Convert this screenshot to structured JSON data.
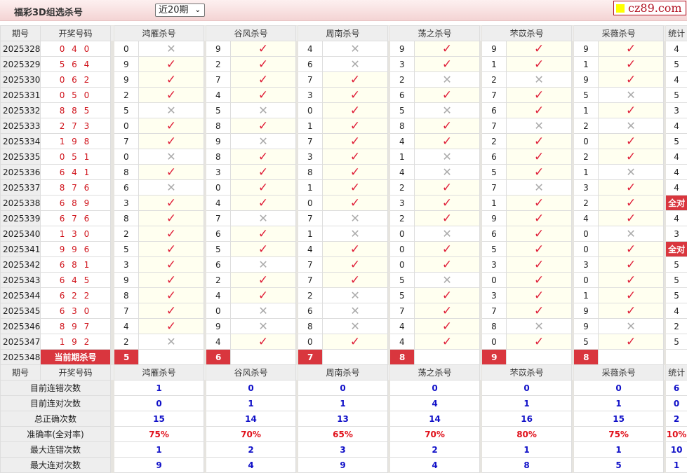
{
  "header": {
    "title": "福彩3D组选杀号",
    "range_select": "近20期",
    "logo": "cz89.com"
  },
  "columns": {
    "period": "期号",
    "draw": "开奖号码",
    "experts": [
      "鸿雁杀号",
      "谷风杀号",
      "周南杀号",
      "荡之杀号",
      "芣苡杀号",
      "采薇杀号"
    ],
    "stat": "统计"
  },
  "icons": {
    "ok": "check-icon",
    "bad": "cross-icon"
  },
  "colors": {
    "accent": "#d9363e",
    "ok": "#e0203a",
    "stat_value": "#1010c8"
  },
  "rows": [
    {
      "period": "2025328",
      "draw": "0 4 0",
      "kills": [
        [
          "0",
          0
        ],
        [
          "9",
          1
        ],
        [
          "4",
          0
        ],
        [
          "9",
          1
        ],
        [
          "9",
          1
        ],
        [
          "9",
          1
        ]
      ],
      "stat": "4"
    },
    {
      "period": "2025329",
      "draw": "5 6 4",
      "kills": [
        [
          "9",
          1
        ],
        [
          "2",
          1
        ],
        [
          "6",
          0
        ],
        [
          "3",
          1
        ],
        [
          "1",
          1
        ],
        [
          "1",
          1
        ]
      ],
      "stat": "5"
    },
    {
      "period": "2025330",
      "draw": "0 6 2",
      "kills": [
        [
          "9",
          1
        ],
        [
          "7",
          1
        ],
        [
          "7",
          1
        ],
        [
          "2",
          0
        ],
        [
          "2",
          0
        ],
        [
          "9",
          1
        ]
      ],
      "stat": "4"
    },
    {
      "period": "2025331",
      "draw": "0 5 0",
      "kills": [
        [
          "2",
          1
        ],
        [
          "4",
          1
        ],
        [
          "3",
          1
        ],
        [
          "6",
          1
        ],
        [
          "7",
          1
        ],
        [
          "5",
          0
        ]
      ],
      "stat": "5"
    },
    {
      "period": "2025332",
      "draw": "8 8 5",
      "kills": [
        [
          "5",
          0
        ],
        [
          "5",
          0
        ],
        [
          "0",
          1
        ],
        [
          "5",
          0
        ],
        [
          "6",
          1
        ],
        [
          "1",
          1
        ]
      ],
      "stat": "3"
    },
    {
      "period": "2025333",
      "draw": "2 7 3",
      "kills": [
        [
          "0",
          1
        ],
        [
          "8",
          1
        ],
        [
          "1",
          1
        ],
        [
          "8",
          1
        ],
        [
          "7",
          0
        ],
        [
          "2",
          0
        ]
      ],
      "stat": "4"
    },
    {
      "period": "2025334",
      "draw": "1 9 8",
      "kills": [
        [
          "7",
          1
        ],
        [
          "9",
          0
        ],
        [
          "7",
          1
        ],
        [
          "4",
          1
        ],
        [
          "2",
          1
        ],
        [
          "0",
          1
        ]
      ],
      "stat": "5"
    },
    {
      "period": "2025335",
      "draw": "0 5 1",
      "kills": [
        [
          "0",
          0
        ],
        [
          "8",
          1
        ],
        [
          "3",
          1
        ],
        [
          "1",
          0
        ],
        [
          "6",
          1
        ],
        [
          "2",
          1
        ]
      ],
      "stat": "4"
    },
    {
      "period": "2025336",
      "draw": "6 4 1",
      "kills": [
        [
          "8",
          1
        ],
        [
          "3",
          1
        ],
        [
          "8",
          1
        ],
        [
          "4",
          0
        ],
        [
          "5",
          1
        ],
        [
          "1",
          0
        ]
      ],
      "stat": "4"
    },
    {
      "period": "2025337",
      "draw": "8 7 6",
      "kills": [
        [
          "6",
          0
        ],
        [
          "0",
          1
        ],
        [
          "1",
          1
        ],
        [
          "2",
          1
        ],
        [
          "7",
          0
        ],
        [
          "3",
          1
        ]
      ],
      "stat": "4"
    },
    {
      "period": "2025338",
      "draw": "6 8 9",
      "kills": [
        [
          "3",
          1
        ],
        [
          "4",
          1
        ],
        [
          "0",
          1
        ],
        [
          "3",
          1
        ],
        [
          "1",
          1
        ],
        [
          "2",
          1
        ]
      ],
      "stat": "全对"
    },
    {
      "period": "2025339",
      "draw": "6 7 6",
      "kills": [
        [
          "8",
          1
        ],
        [
          "7",
          0
        ],
        [
          "7",
          0
        ],
        [
          "2",
          1
        ],
        [
          "9",
          1
        ],
        [
          "4",
          1
        ]
      ],
      "stat": "4"
    },
    {
      "period": "2025340",
      "draw": "1 3 0",
      "kills": [
        [
          "2",
          1
        ],
        [
          "6",
          1
        ],
        [
          "1",
          0
        ],
        [
          "0",
          0
        ],
        [
          "6",
          1
        ],
        [
          "0",
          0
        ]
      ],
      "stat": "3"
    },
    {
      "period": "2025341",
      "draw": "9 9 6",
      "kills": [
        [
          "5",
          1
        ],
        [
          "5",
          1
        ],
        [
          "4",
          1
        ],
        [
          "0",
          1
        ],
        [
          "5",
          1
        ],
        [
          "0",
          1
        ]
      ],
      "stat": "全对"
    },
    {
      "period": "2025342",
      "draw": "6 8 1",
      "kills": [
        [
          "3",
          1
        ],
        [
          "6",
          0
        ],
        [
          "7",
          1
        ],
        [
          "0",
          1
        ],
        [
          "3",
          1
        ],
        [
          "3",
          1
        ]
      ],
      "stat": "5"
    },
    {
      "period": "2025343",
      "draw": "6 4 5",
      "kills": [
        [
          "9",
          1
        ],
        [
          "2",
          1
        ],
        [
          "7",
          1
        ],
        [
          "5",
          0
        ],
        [
          "0",
          1
        ],
        [
          "0",
          1
        ]
      ],
      "stat": "5"
    },
    {
      "period": "2025344",
      "draw": "6 2 2",
      "kills": [
        [
          "8",
          1
        ],
        [
          "4",
          1
        ],
        [
          "2",
          0
        ],
        [
          "5",
          1
        ],
        [
          "3",
          1
        ],
        [
          "1",
          1
        ]
      ],
      "stat": "5"
    },
    {
      "period": "2025345",
      "draw": "6 3 0",
      "kills": [
        [
          "7",
          1
        ],
        [
          "0",
          0
        ],
        [
          "6",
          0
        ],
        [
          "7",
          1
        ],
        [
          "7",
          1
        ],
        [
          "9",
          1
        ]
      ],
      "stat": "4"
    },
    {
      "period": "2025346",
      "draw": "8 9 7",
      "kills": [
        [
          "4",
          1
        ],
        [
          "9",
          0
        ],
        [
          "8",
          0
        ],
        [
          "4",
          1
        ],
        [
          "8",
          0
        ],
        [
          "9",
          0
        ]
      ],
      "stat": "2"
    },
    {
      "period": "2025347",
      "draw": "1 9 2",
      "kills": [
        [
          "2",
          0
        ],
        [
          "4",
          1
        ],
        [
          "0",
          1
        ],
        [
          "4",
          1
        ],
        [
          "0",
          1
        ],
        [
          "5",
          1
        ]
      ],
      "stat": "5"
    }
  ],
  "current": {
    "period": "2025348",
    "label": "当前期杀号",
    "kills": [
      "5",
      "6",
      "7",
      "8",
      "9",
      "8"
    ]
  },
  "stats": [
    {
      "label": "目前连错次数",
      "values": [
        "1",
        "0",
        "0",
        "0",
        "0",
        "0"
      ],
      "stat": "6",
      "red": false
    },
    {
      "label": "目前连对次数",
      "values": [
        "0",
        "1",
        "1",
        "4",
        "1",
        "1"
      ],
      "stat": "0",
      "red": false
    },
    {
      "label": "总正确次数",
      "values": [
        "15",
        "14",
        "13",
        "14",
        "16",
        "15"
      ],
      "stat": "2",
      "red": false
    },
    {
      "label": "准确率(全对率)",
      "values": [
        "75%",
        "70%",
        "65%",
        "70%",
        "80%",
        "75%"
      ],
      "stat": "10%",
      "red": true
    },
    {
      "label": "最大连错次数",
      "values": [
        "1",
        "2",
        "3",
        "2",
        "1",
        "1"
      ],
      "stat": "10",
      "red": false
    },
    {
      "label": "最大连对次数",
      "values": [
        "9",
        "4",
        "9",
        "4",
        "8",
        "5"
      ],
      "stat": "1",
      "red": false
    }
  ]
}
